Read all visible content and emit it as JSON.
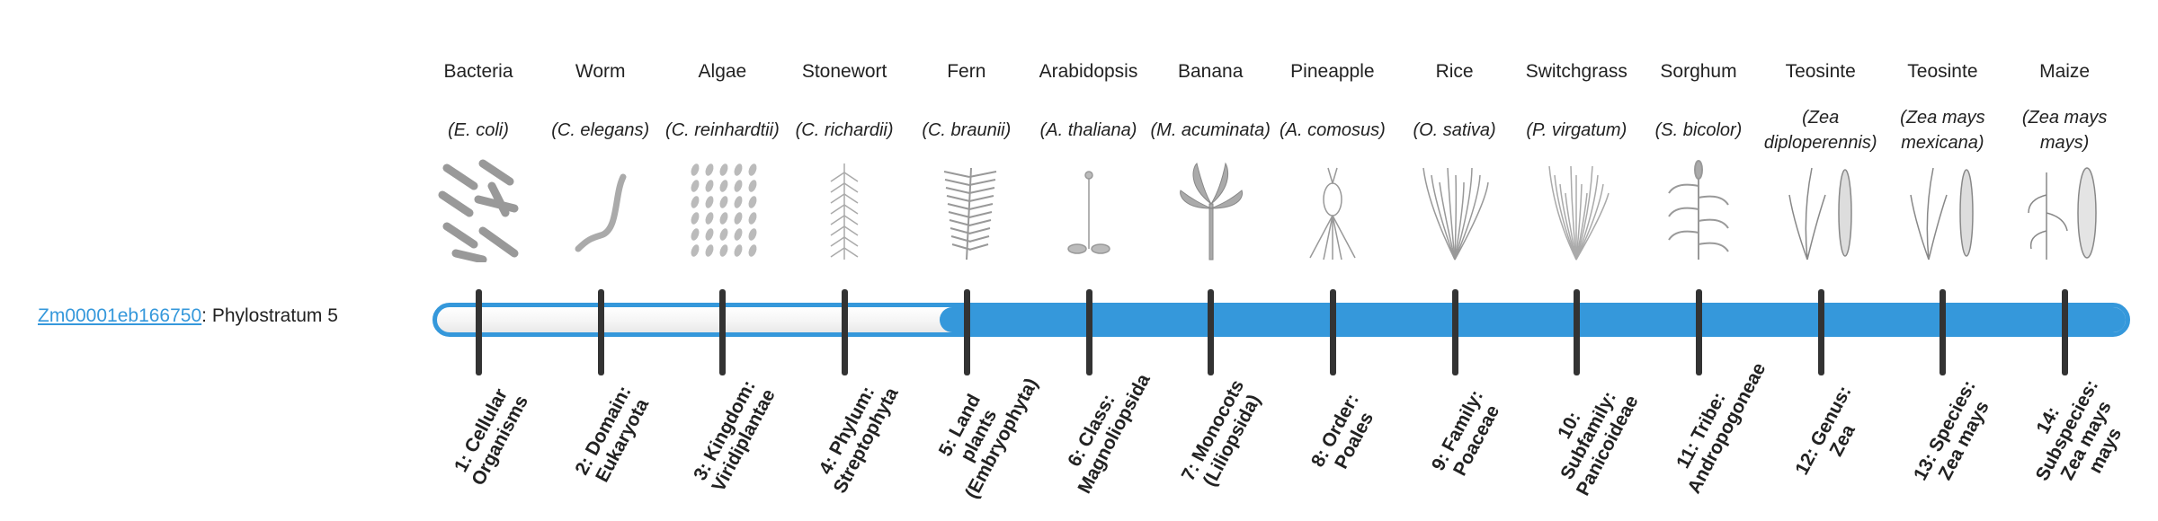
{
  "gene": {
    "id": "Zm00001eb166750",
    "suffix": ": Phylostratum 5"
  },
  "phylostratum": 5,
  "colors": {
    "accent": "#3598db",
    "tick": "#333333"
  },
  "organisms": [
    {
      "common": "Bacteria",
      "scientific": "(E. coli)",
      "icon": "bacteria-icon"
    },
    {
      "common": "Worm",
      "scientific": "(C. elegans)",
      "icon": "worm-icon"
    },
    {
      "common": "Algae",
      "scientific": "(C. reinhardtii)",
      "icon": "algae-icon"
    },
    {
      "common": "Stonewort",
      "scientific": "(C. richardii)",
      "icon": "stonewort-icon"
    },
    {
      "common": "Fern",
      "scientific": "(C. braunii)",
      "icon": "fern-icon"
    },
    {
      "common": "Arabidopsis",
      "scientific": "(A. thaliana)",
      "icon": "arabidopsis-icon"
    },
    {
      "common": "Banana",
      "scientific": "(M. acuminata)",
      "icon": "banana-icon"
    },
    {
      "common": "Pineapple",
      "scientific": "(A. comosus)",
      "icon": "pineapple-icon"
    },
    {
      "common": "Rice",
      "scientific": "(O. sativa)",
      "icon": "rice-icon"
    },
    {
      "common": "Switchgrass",
      "scientific": "(P. virgatum)",
      "icon": "switchgrass-icon"
    },
    {
      "common": "Sorghum",
      "scientific": "(S. bicolor)",
      "icon": "sorghum-icon"
    },
    {
      "common": "Teosinte",
      "scientific": "(Zea diploperennis)",
      "icon": "teosinte-icon"
    },
    {
      "common": "Teosinte",
      "scientific": "(Zea mays mexicana)",
      "icon": "teosinte-icon"
    },
    {
      "common": "Maize",
      "scientific": "(Zea mays mays)",
      "icon": "maize-icon"
    }
  ],
  "strata": [
    "1: Cellular Organisms",
    "2: Domain: Eukaryota",
    "3: Kingdom: Viridiplantae",
    "4: Phylum: Streptophyta",
    "5: Land plants (Embryophyta)",
    "6: Class: Magnoliopsida",
    "7: Monocots (Liliopsida)",
    "8: Order: Poales",
    "9: Family: Poaceae",
    "10: Subfamily: Panicoideae",
    "11: Tribe: Andropogoneae",
    "12: Genus: Zea",
    "13: Species: Zea mays",
    "14: Subspecies: Zea mays mays"
  ]
}
